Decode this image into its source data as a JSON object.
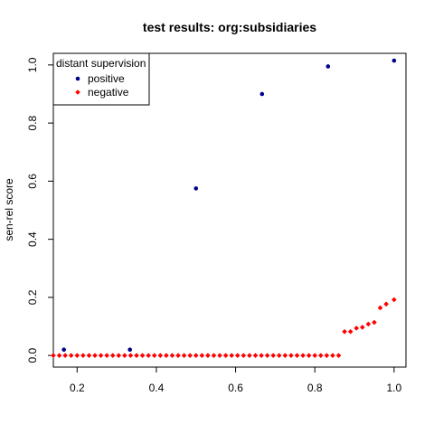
{
  "chart_data": {
    "type": "scatter",
    "title": "test results: org:subsidiaries",
    "xlabel": "",
    "ylabel": "sen-rel score",
    "xlim": [
      0.14,
      1.03
    ],
    "ylim": [
      -0.04,
      1.04
    ],
    "xticks": [
      0.2,
      0.4,
      0.6,
      0.8,
      1.0
    ],
    "yticks": [
      0.0,
      0.2,
      0.4,
      0.6,
      0.8,
      1.0
    ],
    "xtick_labels": [
      "0.2",
      "0.4",
      "0.6",
      "0.8",
      "1.0"
    ],
    "ytick_labels": [
      "0.0",
      "0.2",
      "0.4",
      "0.6",
      "0.8",
      "1.0"
    ],
    "grid": false,
    "legend": {
      "title": "distant supervision",
      "placement": "top-left",
      "entries": [
        "positive",
        "negative"
      ]
    },
    "series": [
      {
        "name": "positive",
        "color": "#00008b",
        "marker": "circle",
        "x": [
          0.1667,
          0.3333,
          0.5,
          0.6667,
          0.8333,
          1.0
        ],
        "y": [
          0.02,
          0.02,
          0.575,
          0.9,
          0.995,
          1.015
        ]
      },
      {
        "name": "negative",
        "color": "#ff0000",
        "marker": "diamond",
        "x": [
          0.14,
          0.155,
          0.17,
          0.185,
          0.2,
          0.215,
          0.23,
          0.245,
          0.26,
          0.275,
          0.29,
          0.305,
          0.32,
          0.335,
          0.35,
          0.365,
          0.38,
          0.395,
          0.41,
          0.425,
          0.44,
          0.455,
          0.47,
          0.485,
          0.5,
          0.515,
          0.53,
          0.545,
          0.56,
          0.575,
          0.59,
          0.605,
          0.62,
          0.635,
          0.65,
          0.665,
          0.68,
          0.695,
          0.71,
          0.725,
          0.74,
          0.755,
          0.77,
          0.785,
          0.8,
          0.815,
          0.83,
          0.845,
          0.86,
          0.875,
          0.89,
          0.905,
          0.92,
          0.935,
          0.95,
          0.965,
          0.98,
          1.0
        ],
        "y": [
          0,
          0,
          0,
          0,
          0,
          0,
          0,
          0,
          0,
          0,
          0,
          0,
          0,
          0,
          0,
          0,
          0,
          0,
          0,
          0,
          0,
          0,
          0,
          0,
          0,
          0,
          0,
          0,
          0,
          0,
          0,
          0,
          0,
          0,
          0,
          0,
          0,
          0,
          0,
          0,
          0,
          0,
          0,
          0,
          0,
          0,
          0,
          0,
          0,
          0.082,
          0.082,
          0.094,
          0.097,
          0.108,
          0.114,
          0.164,
          0.177,
          0.192
        ]
      }
    ]
  }
}
